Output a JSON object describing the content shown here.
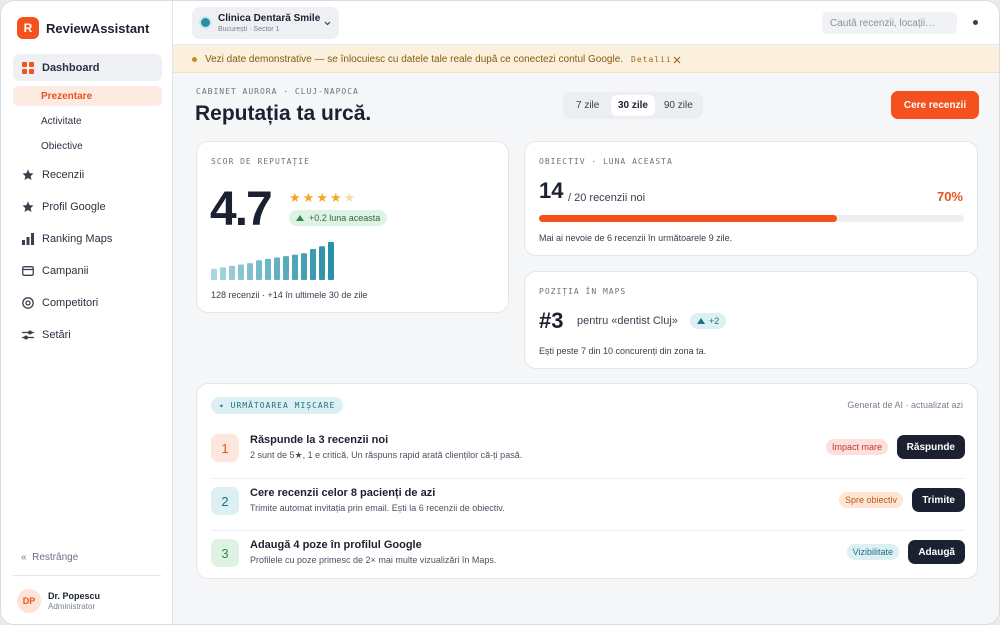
{
  "sidebar": {
    "brand_initial": "R",
    "brand": "ReviewAssistant",
    "nav": [
      {
        "label": "Dashboard",
        "sub": [
          "Prezentare",
          "Activitate",
          "Obiective"
        ]
      },
      {
        "label": "Recenzii"
      },
      {
        "label": "Profil Google"
      },
      {
        "label": "Ranking Maps"
      },
      {
        "label": "Campanii"
      },
      {
        "label": "Competitori"
      },
      {
        "label": "Setări"
      }
    ],
    "collapse_icon": "«",
    "collapse": "Restrânge",
    "user": {
      "initials": "DP",
      "name": "Dr. Popescu",
      "role": "Administrator"
    }
  },
  "topbar": {
    "clinic": "Clinica Dentară Smile",
    "location": "București · Sector 1",
    "search_placeholder": "Caută recenzii, locații…"
  },
  "banner": {
    "text": "Vezi date demonstrative — se înlocuiesc cu datele tale reale după ce conectezi contul Google.",
    "link": "Detalii"
  },
  "header": {
    "eyebrow": "CABINET AURORA · CLUJ-NAPOCA",
    "title": "Reputația ta urcă.",
    "ranges": [
      "7 zile",
      "30 zile",
      "90 zile"
    ],
    "button": "Cere recenzii"
  },
  "score_card": {
    "label": "SCOR DE REPUTAȚIE",
    "score": 4.7,
    "badge": "+0.2 luna aceasta",
    "trend": [
      8,
      9,
      10,
      11,
      12,
      14,
      15,
      16,
      17,
      18,
      19,
      22,
      24,
      27
    ],
    "footer": "128 recenzii · +14 în ultimele 30 de zile"
  },
  "goal_card": {
    "label": "OBIECTIV · LUNA ACEASTA",
    "current": 14,
    "target": "/ 20 recenzii noi",
    "percent": 70,
    "percent_label": "70%",
    "footer": "Mai ai nevoie de 6 recenzii în următoarele 9 zile."
  },
  "maps_card": {
    "label": "POZIȚIA ÎN MAPS",
    "rank": "#3",
    "query": "pentru «dentist Cluj»",
    "change": "+2",
    "footer": "Ești peste 7 din 10 concurenți din zona ta."
  },
  "next_moves": {
    "badge": "URMĂTOAREA MIȘCARE",
    "meta": "Generat de AI · actualizat azi",
    "items": [
      {
        "number": 1,
        "title": "Răspunde la 3 recenzii noi",
        "description": "2 sunt de 5★, 1 e critică. Un răspuns rapid arată clienților că-ți pasă.",
        "tag": "Impact mare",
        "action": "Răspunde"
      },
      {
        "number": 2,
        "title": "Cere recenzii celor 8 pacienți de azi",
        "description": "Trimite automat invitația prin email. Ești la 6 recenzii de obiectiv.",
        "tag": "Spre obiectiv",
        "action": "Trimite"
      },
      {
        "number": 3,
        "title": "Adaugă 4 poze în profilul Google",
        "description": "Profilele cu poze primesc de 2× mai multe vizualizări în Maps.",
        "tag": "Vizibilitate",
        "action": "Adaugă"
      }
    ]
  }
}
